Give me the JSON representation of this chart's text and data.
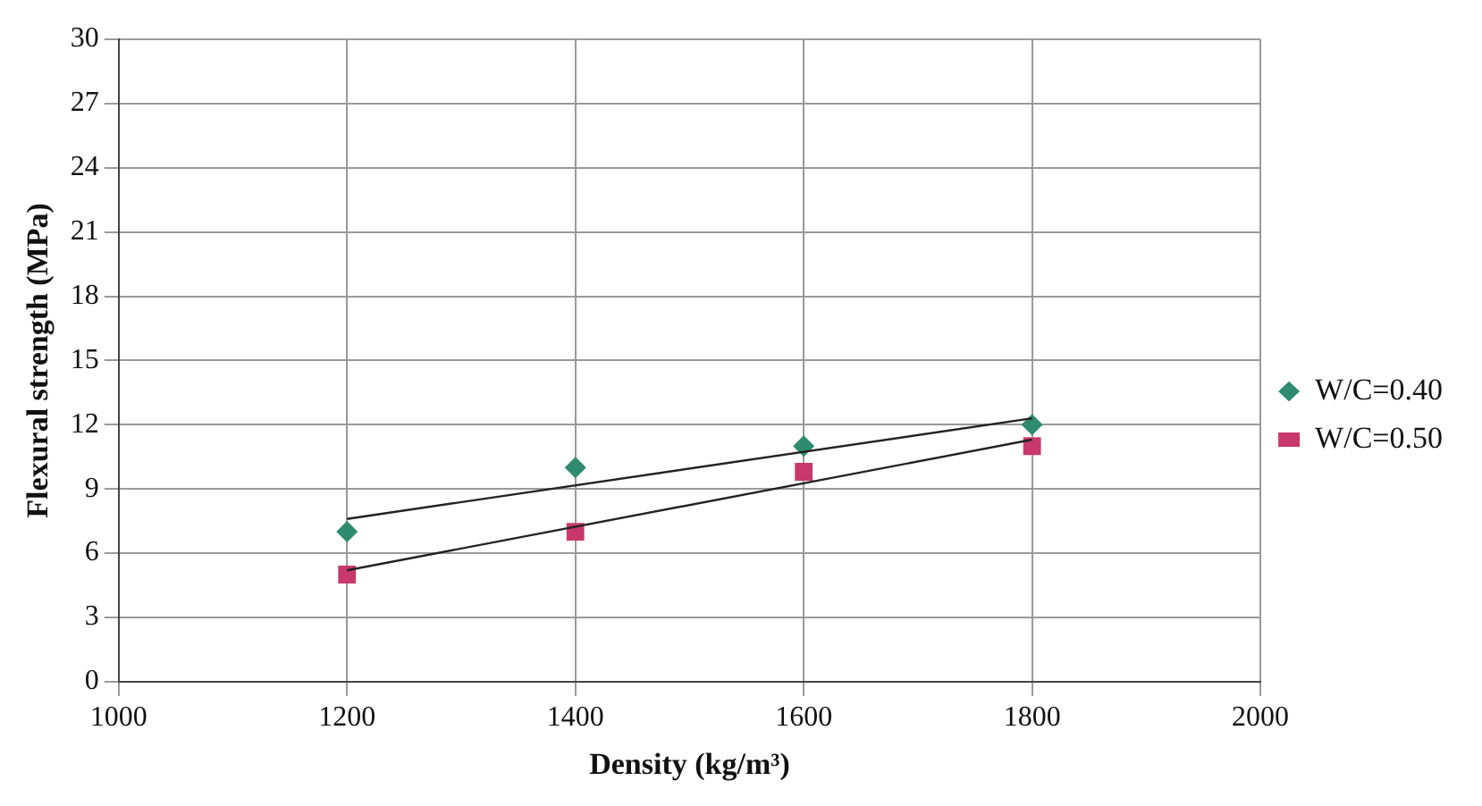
{
  "chart_data": {
    "type": "scatter",
    "xlabel": "Density (kg/m³)",
    "ylabel": "Flexural strength (MPa)",
    "xlim": [
      1000,
      2000
    ],
    "xticks": [
      1000,
      1200,
      1400,
      1600,
      1800,
      2000
    ],
    "ylim": [
      0,
      30
    ],
    "yticks": [
      0,
      3,
      6,
      9,
      12,
      15,
      18,
      21,
      24,
      27,
      30
    ],
    "grid": true,
    "legend": "right",
    "series": [
      {
        "name": "W/C=0.40",
        "color": "#2e8b6e",
        "marker": "diamond",
        "x": [
          1200,
          1400,
          1600,
          1800
        ],
        "values": [
          7,
          10,
          11,
          12
        ]
      },
      {
        "name": "W/C=0.50",
        "color": "#c8386a",
        "marker": "square",
        "x": [
          1200,
          1400,
          1600,
          1800
        ],
        "values": [
          5,
          7,
          9.8,
          11
        ]
      },
      {
        "type": "line",
        "color": "#222222",
        "marker": "none",
        "x": [
          1200,
          1800
        ],
        "values": [
          7.6,
          12.3
        ]
      },
      {
        "type": "line",
        "color": "#222222",
        "marker": "none",
        "x": [
          1200,
          1800
        ],
        "values": [
          5.2,
          11.3
        ]
      }
    ]
  }
}
